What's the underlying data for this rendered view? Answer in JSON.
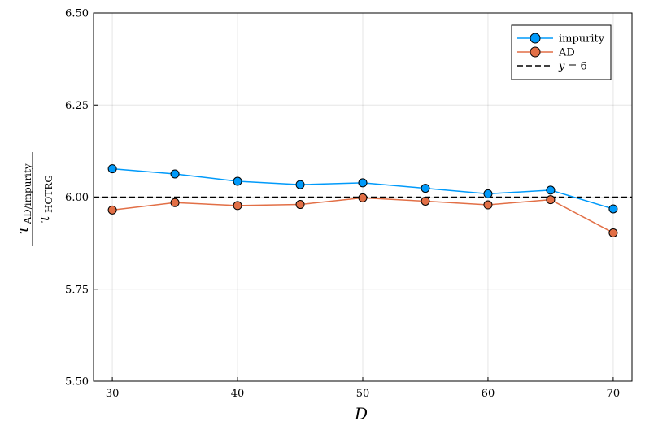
{
  "chart_data": {
    "type": "line",
    "xlabel": "D",
    "ylabel": {
      "numerator_symbol": "τ",
      "numerator_sub": "AD/impurity",
      "denominator_symbol": "τ",
      "denominator_sub": "HOTRG"
    },
    "xlim": [
      28.5,
      71.5
    ],
    "ylim": [
      5.5,
      6.5
    ],
    "xticks": [
      30,
      40,
      50,
      60,
      70
    ],
    "yticks": [
      5.5,
      5.75,
      6.0,
      6.25,
      6.5
    ],
    "xtick_labels": [
      "30",
      "40",
      "50",
      "60",
      "70"
    ],
    "ytick_labels": [
      "5.50",
      "5.75",
      "6.00",
      "6.25",
      "6.50"
    ],
    "grid": true,
    "legend_position": "top-right",
    "x": [
      30,
      35,
      40,
      45,
      50,
      55,
      60,
      65,
      70
    ],
    "series": [
      {
        "name": "impurity",
        "color": "#009AFA",
        "marker": "circle",
        "values": [
          6.077,
          6.063,
          6.043,
          6.034,
          6.039,
          6.024,
          6.009,
          6.019,
          5.968
        ]
      },
      {
        "name": "AD",
        "color": "#E26F46",
        "marker": "circle",
        "values": [
          5.965,
          5.985,
          5.977,
          5.98,
          5.998,
          5.989,
          5.979,
          5.993,
          5.903
        ]
      }
    ],
    "reference_line": {
      "label": "y = 6",
      "label_var": "y",
      "label_rest": " = 6",
      "y": 6,
      "color": "#000000",
      "style": "dashed"
    }
  }
}
